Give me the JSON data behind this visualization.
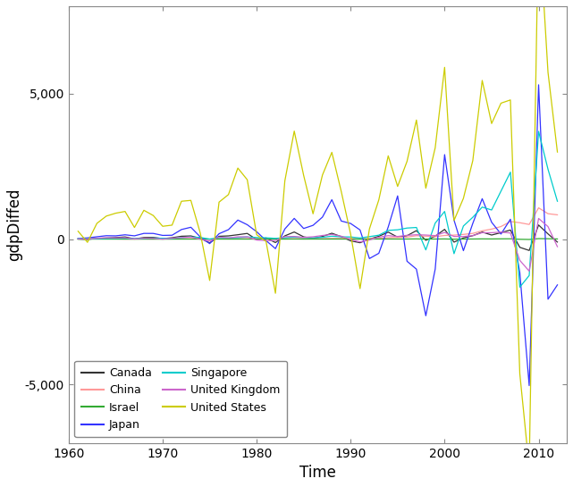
{
  "title": "",
  "xlabel": "Time",
  "ylabel": "gdpDiffed",
  "ylim": [
    -7000,
    8000
  ],
  "xlim": [
    1960,
    2013
  ],
  "yticks": [
    -5000,
    0,
    5000
  ],
  "xticks": [
    1960,
    1970,
    1980,
    1990,
    2000,
    2010
  ],
  "background_color": "#ffffff",
  "countries": [
    "Canada",
    "China",
    "Israel",
    "Japan",
    "Singapore",
    "United Kingdom",
    "United States"
  ],
  "colors": {
    "Canada": "#333333",
    "China": "#ff9999",
    "Israel": "#33aa33",
    "Japan": "#3333ff",
    "Singapore": "#00cccc",
    "United Kingdom": "#cc66cc",
    "United States": "#cccc00"
  },
  "time": [
    1961,
    1962,
    1963,
    1964,
    1965,
    1966,
    1967,
    1968,
    1969,
    1970,
    1971,
    1972,
    1973,
    1974,
    1975,
    1976,
    1977,
    1978,
    1979,
    1980,
    1981,
    1982,
    1983,
    1984,
    1985,
    1986,
    1987,
    1988,
    1989,
    1990,
    1991,
    1992,
    1993,
    1994,
    1995,
    1996,
    1997,
    1998,
    1999,
    2000,
    2001,
    2002,
    2003,
    2004,
    2005,
    2006,
    2007,
    2008,
    2009,
    2010,
    2011,
    2012
  ],
  "Canada": [
    2.4,
    -14.6,
    28.6,
    37.6,
    53.5,
    74.0,
    8.5,
    54.5,
    60.1,
    15.9,
    48.5,
    97.7,
    109.3,
    26.5,
    -131.0,
    96.5,
    110.3,
    150.6,
    195.3,
    -18.2,
    37.5,
    -118.6,
    111.9,
    244.4,
    77.4,
    23.4,
    90.4,
    201.5,
    85.0,
    -60.0,
    -124.3,
    2.0,
    96.0,
    241.0,
    66.9,
    117.3,
    290.5,
    -42.0,
    99.0,
    334.5,
    -104.0,
    41.0,
    118.0,
    242.0,
    140.0,
    222.0,
    311.0,
    -283.0,
    -390.0,
    484.0,
    179.0,
    -101.0
  ],
  "China": [
    5.1,
    3.0,
    21.2,
    11.5,
    6.5,
    0.0,
    -0.2,
    4.0,
    2.9,
    4.0,
    4.2,
    11.7,
    17.3,
    7.3,
    -6.5,
    8.2,
    8.4,
    15.2,
    17.2,
    15.5,
    15.0,
    14.8,
    11.7,
    16.9,
    21.1,
    18.4,
    18.5,
    22.3,
    27.0,
    18.5,
    19.2,
    15.8,
    23.4,
    50.0,
    57.0,
    68.0,
    117.0,
    101.0,
    83.0,
    125.0,
    137.0,
    162.0,
    196.0,
    285.0,
    343.0,
    432.0,
    604.0,
    563.0,
    503.0,
    1074.0,
    873.0,
    834.0
  ],
  "Israel": [
    0.2,
    0.1,
    0.2,
    0.3,
    0.3,
    0.3,
    0.2,
    0.3,
    0.4,
    0.2,
    0.3,
    0.5,
    0.8,
    0.7,
    -0.1,
    0.7,
    0.5,
    0.8,
    0.9,
    0.8,
    0.7,
    0.5,
    0.5,
    2.5,
    0.6,
    1.2,
    1.4,
    2.0,
    1.5,
    1.5,
    -1.0,
    0.5,
    2.5,
    3.5,
    2.0,
    3.0,
    7.5,
    0.5,
    2.5,
    6.0,
    -2.5,
    1.5,
    3.5,
    7.5,
    5.5,
    9.0,
    11.0,
    -6.0,
    -12.0,
    16.0,
    13.0,
    5.0
  ],
  "Japan": [
    23.0,
    42.0,
    80.0,
    117.0,
    112.0,
    148.0,
    112.0,
    196.0,
    195.0,
    127.0,
    133.0,
    329.0,
    407.0,
    75.0,
    -155.0,
    185.0,
    325.0,
    654.0,
    494.0,
    255.0,
    -50.0,
    -327.0,
    348.0,
    712.0,
    365.0,
    473.0,
    755.0,
    1354.0,
    622.0,
    537.0,
    315.0,
    -668.0,
    -487.0,
    417.0,
    1485.0,
    -760.0,
    -1032.0,
    -2632.0,
    -1028.0,
    2902.0,
    652.0,
    -397.0,
    542.0,
    1388.0,
    580.0,
    174.0,
    682.0,
    -1147.0,
    -5032.0,
    5300.0,
    -2064.0,
    -1573.0
  ],
  "Singapore": [
    0.19,
    0.09,
    0.13,
    0.22,
    0.26,
    0.28,
    0.13,
    0.26,
    0.38,
    0.28,
    0.23,
    0.52,
    0.73,
    0.56,
    0.02,
    0.49,
    0.42,
    0.51,
    0.73,
    0.55,
    0.45,
    0.25,
    0.48,
    0.7,
    0.55,
    0.47,
    0.61,
    1.0,
    0.77,
    0.74,
    0.39,
    0.85,
    1.35,
    3.0,
    3.2,
    3.8,
    4.0,
    -3.7,
    5.5,
    9.5,
    -5.0,
    4.5,
    7.5,
    11.0,
    10.0,
    16.5,
    23.0,
    -16.5,
    -12.5,
    37.0,
    24.0,
    13.0
  ],
  "United Kingdom": [
    10.0,
    2.0,
    25.0,
    45.0,
    40.0,
    48.0,
    3.0,
    30.0,
    28.0,
    -2.0,
    32.0,
    52.0,
    70.0,
    -5.0,
    -65.0,
    68.0,
    40.0,
    78.0,
    80.0,
    -32.0,
    -50.0,
    -45.0,
    85.0,
    92.0,
    60.0,
    80.0,
    125.0,
    160.0,
    100.0,
    -15.0,
    -95.0,
    -30.0,
    65.0,
    120.0,
    90.0,
    130.0,
    150.0,
    140.0,
    120.0,
    230.0,
    90.0,
    90.0,
    120.0,
    220.0,
    220.0,
    240.0,
    210.0,
    -730.0,
    -1100.0,
    710.0,
    430.0,
    -260.0
  ],
  "United States": [
    270.0,
    -110.0,
    540.0,
    790.0,
    890.0,
    950.0,
    400.0,
    990.0,
    810.0,
    440.0,
    480.0,
    1300.0,
    1330.0,
    210.0,
    -1420.0,
    1270.0,
    1530.0,
    2440.0,
    2040.0,
    150.0,
    -80.0,
    -1860.0,
    2000.0,
    3710.0,
    2190.0,
    870.0,
    2200.0,
    2980.0,
    1640.0,
    170.0,
    -1700.0,
    350.0,
    1350.0,
    2860.0,
    1810.0,
    2670.0,
    4090.0,
    1750.0,
    3140.0,
    5900.0,
    640.0,
    1400.0,
    2700.0,
    5450.0,
    3970.0,
    4670.0,
    4780.0,
    -4620.0,
    -7850.0,
    11090.0,
    5730.0,
    2990.0
  ],
  "Singapore_scaled": [
    19.0,
    9.0,
    13.0,
    22.0,
    26.0,
    28.0,
    13.0,
    26.0,
    38.0,
    28.0,
    23.0,
    52.0,
    73.0,
    56.0,
    2.0,
    49.0,
    42.0,
    51.0,
    73.0,
    55.0,
    45.0,
    25.0,
    48.0,
    70.0,
    55.0,
    47.0,
    61.0,
    100.0,
    77.0,
    74.0,
    39.0,
    85.0,
    135.0,
    300.0,
    320.0,
    380.0,
    400.0,
    -370.0,
    550.0,
    950.0,
    -500.0,
    450.0,
    750.0,
    1100.0,
    1000.0,
    1650.0,
    2300.0,
    -1650.0,
    -1250.0,
    3700.0,
    2400.0,
    1300.0
  ]
}
